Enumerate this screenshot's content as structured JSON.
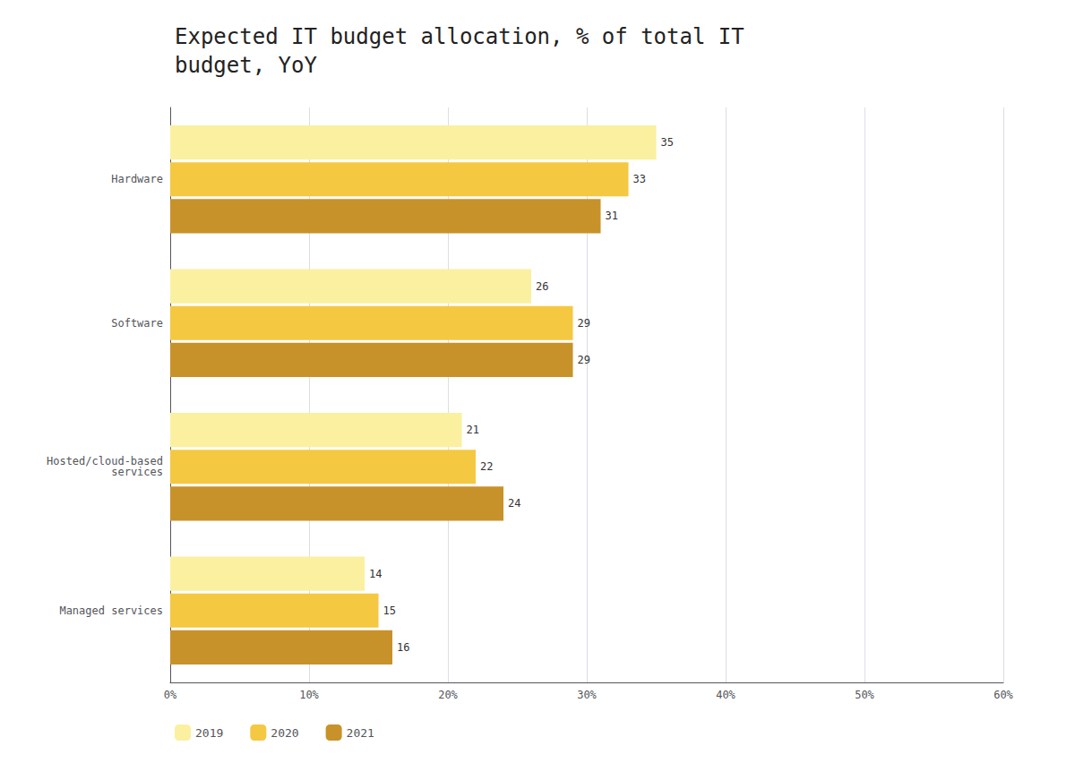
{
  "chart_data": {
    "type": "bar",
    "orientation": "horizontal",
    "title": "Expected IT budget allocation, % of total IT\nbudget, YoY",
    "categories": [
      "Hardware",
      "Software",
      "Hosted/cloud-based\nservices",
      "Managed services"
    ],
    "series": [
      {
        "name": "2019",
        "color": "#FAF0A0",
        "values": [
          35,
          26,
          21,
          14
        ]
      },
      {
        "name": "2020",
        "color": "#F5C842",
        "values": [
          33,
          29,
          22,
          15
        ]
      },
      {
        "name": "2021",
        "color": "#C8922A",
        "values": [
          31,
          29,
          24,
          16
        ]
      }
    ],
    "xlim": [
      0,
      60
    ],
    "xticks": [
      {
        "value": 0,
        "label": "0%"
      },
      {
        "value": 10,
        "label": "10%"
      },
      {
        "value": 20,
        "label": "20%"
      },
      {
        "value": 30,
        "label": "30%"
      },
      {
        "value": 40,
        "label": "40%"
      },
      {
        "value": 50,
        "label": "50%"
      },
      {
        "value": 60,
        "label": "60%"
      }
    ],
    "grid": true,
    "data_labels": true,
    "legend": "bottom"
  }
}
